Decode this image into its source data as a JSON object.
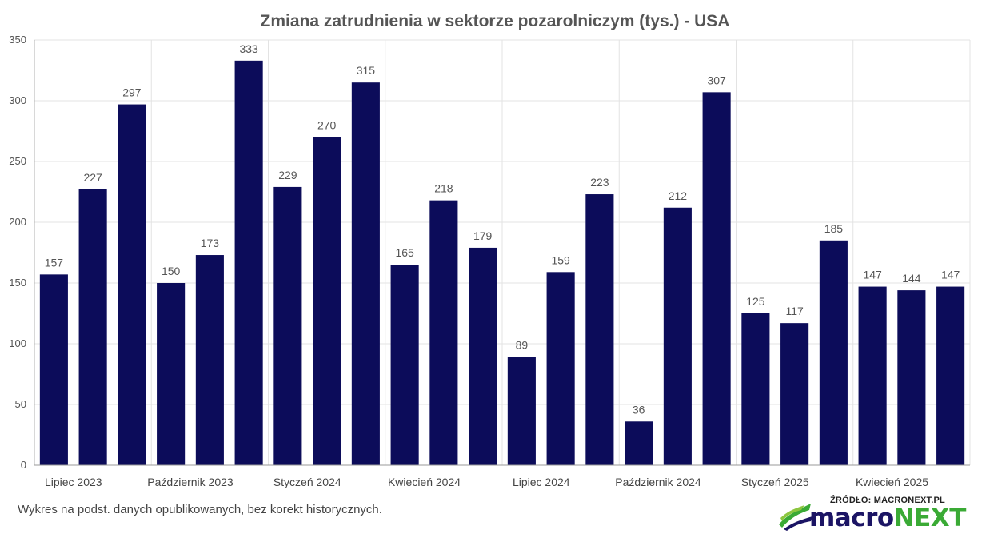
{
  "chart_data": {
    "type": "bar",
    "title": "Zmiana zatrudnienia w sektorze pozarolniczym (tys.) - USA",
    "xlabel": "",
    "ylabel": "",
    "ylim": [
      0,
      350
    ],
    "yticks": [
      0,
      50,
      100,
      150,
      200,
      250,
      300,
      350
    ],
    "grid": true,
    "bar_color": "#0c0c5a",
    "values": [
      157,
      227,
      297,
      150,
      173,
      333,
      229,
      270,
      315,
      165,
      218,
      179,
      89,
      159,
      223,
      36,
      212,
      307,
      125,
      117,
      185,
      147,
      144,
      147
    ],
    "x_tick_labels": [
      {
        "index": 0,
        "label": "Lipiec 2023"
      },
      {
        "index": 3,
        "label": "Październik 2023"
      },
      {
        "index": 6,
        "label": "Styczeń 2024"
      },
      {
        "index": 9,
        "label": "Kwiecień 2024"
      },
      {
        "index": 12,
        "label": "Lipiec 2024"
      },
      {
        "index": 15,
        "label": "Październik 2024"
      },
      {
        "index": 18,
        "label": "Styczeń 2025"
      },
      {
        "index": 21,
        "label": "Kwiecień 2025"
      }
    ]
  },
  "footer": {
    "note": "Wykres na podst. danych opublikowanych, bez korekt historycznych.",
    "source": "ŹRÓDŁO: MACRONEXT.PL",
    "logo_part1": "macro",
    "logo_part2": "NEXT",
    "logo_colors": {
      "dark": "#1b1464",
      "green": "#3aaa35"
    }
  }
}
